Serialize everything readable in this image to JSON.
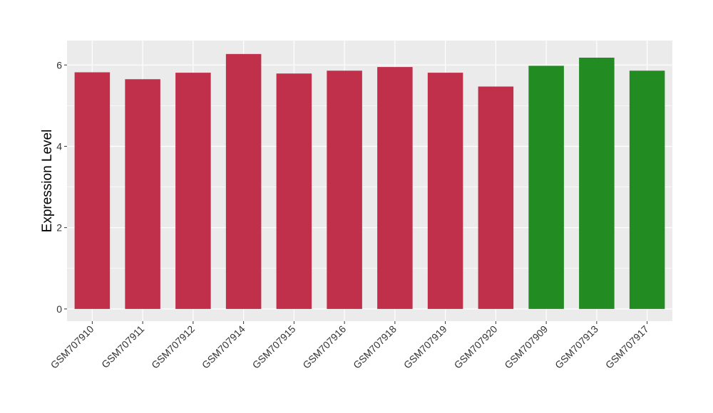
{
  "chart_data": {
    "type": "bar",
    "title": "",
    "xlabel": "",
    "ylabel": "Expression Level",
    "ylim": [
      -0.3,
      6.6
    ],
    "yticks": [
      0,
      2,
      4,
      6
    ],
    "grid": true,
    "legend": "none",
    "categories": [
      "GSM707910",
      "GSM707911",
      "GSM707912",
      "GSM707914",
      "GSM707915",
      "GSM707916",
      "GSM707918",
      "GSM707919",
      "GSM707920",
      "GSM707909",
      "GSM707913",
      "GSM707917"
    ],
    "values": [
      5.82,
      5.65,
      5.81,
      6.27,
      5.79,
      5.86,
      5.95,
      5.81,
      5.47,
      5.98,
      6.18,
      5.86
    ],
    "bar_colors": [
      "#c0304a",
      "#c0304a",
      "#c0304a",
      "#c0304a",
      "#c0304a",
      "#c0304a",
      "#c0304a",
      "#c0304a",
      "#c0304a",
      "#228b22",
      "#228b22",
      "#228b22"
    ],
    "panel_background": "#ebebeb",
    "grid_color": "#ffffff"
  }
}
